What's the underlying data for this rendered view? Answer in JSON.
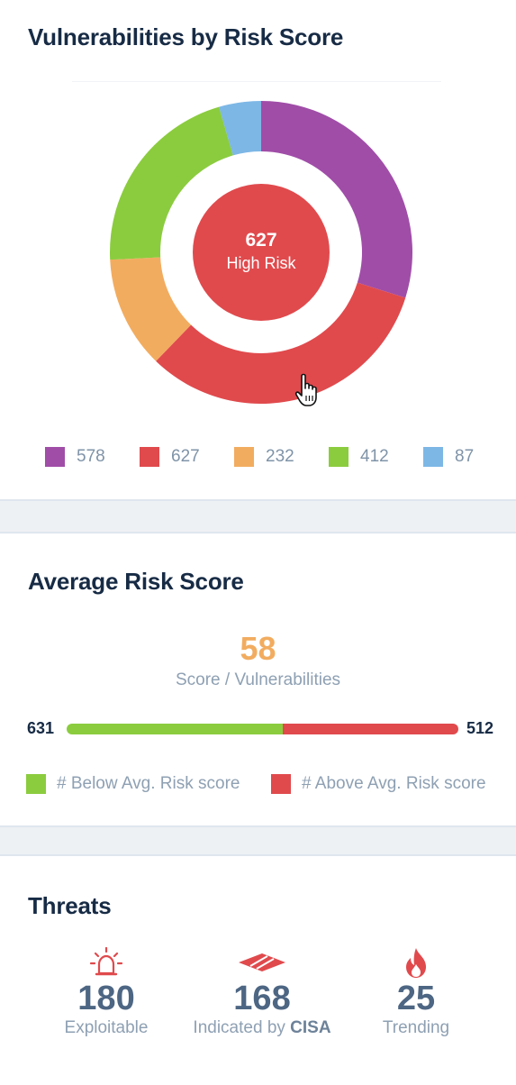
{
  "donut_card": {
    "title": "Vulnerabilities by Risk Score",
    "center_value": "627",
    "center_label": "High Risk"
  },
  "chart_data": {
    "type": "pie",
    "variant": "donut",
    "values": [
      578,
      627,
      232,
      412,
      87
    ],
    "colors": [
      "#a04da8",
      "#e04a4d",
      "#f2ac5f",
      "#8bcc3e",
      "#7db7e6"
    ],
    "legend_placement": "bottom",
    "highlighted_index": 1
  },
  "avg_card": {
    "title": "Average Risk Score",
    "score": "58",
    "caption": "Score / Vulnerabilities",
    "below_count": "631",
    "above_count": "512",
    "below_value": 631,
    "above_value": 512,
    "below_label": "# Below Avg. Risk score",
    "above_label": "# Above Avg. Risk score",
    "below_color": "#8bcc3e",
    "above_color": "#e04a4d"
  },
  "threats_card": {
    "title": "Threats",
    "items": [
      {
        "icon": "siren-icon",
        "value": "180",
        "label": "Exploitable"
      },
      {
        "icon": "cisa-icon",
        "value": "168",
        "label_prefix": "Indicated by ",
        "label_strong": "CISA"
      },
      {
        "icon": "flame-icon",
        "value": "25",
        "label": "Trending"
      }
    ]
  }
}
